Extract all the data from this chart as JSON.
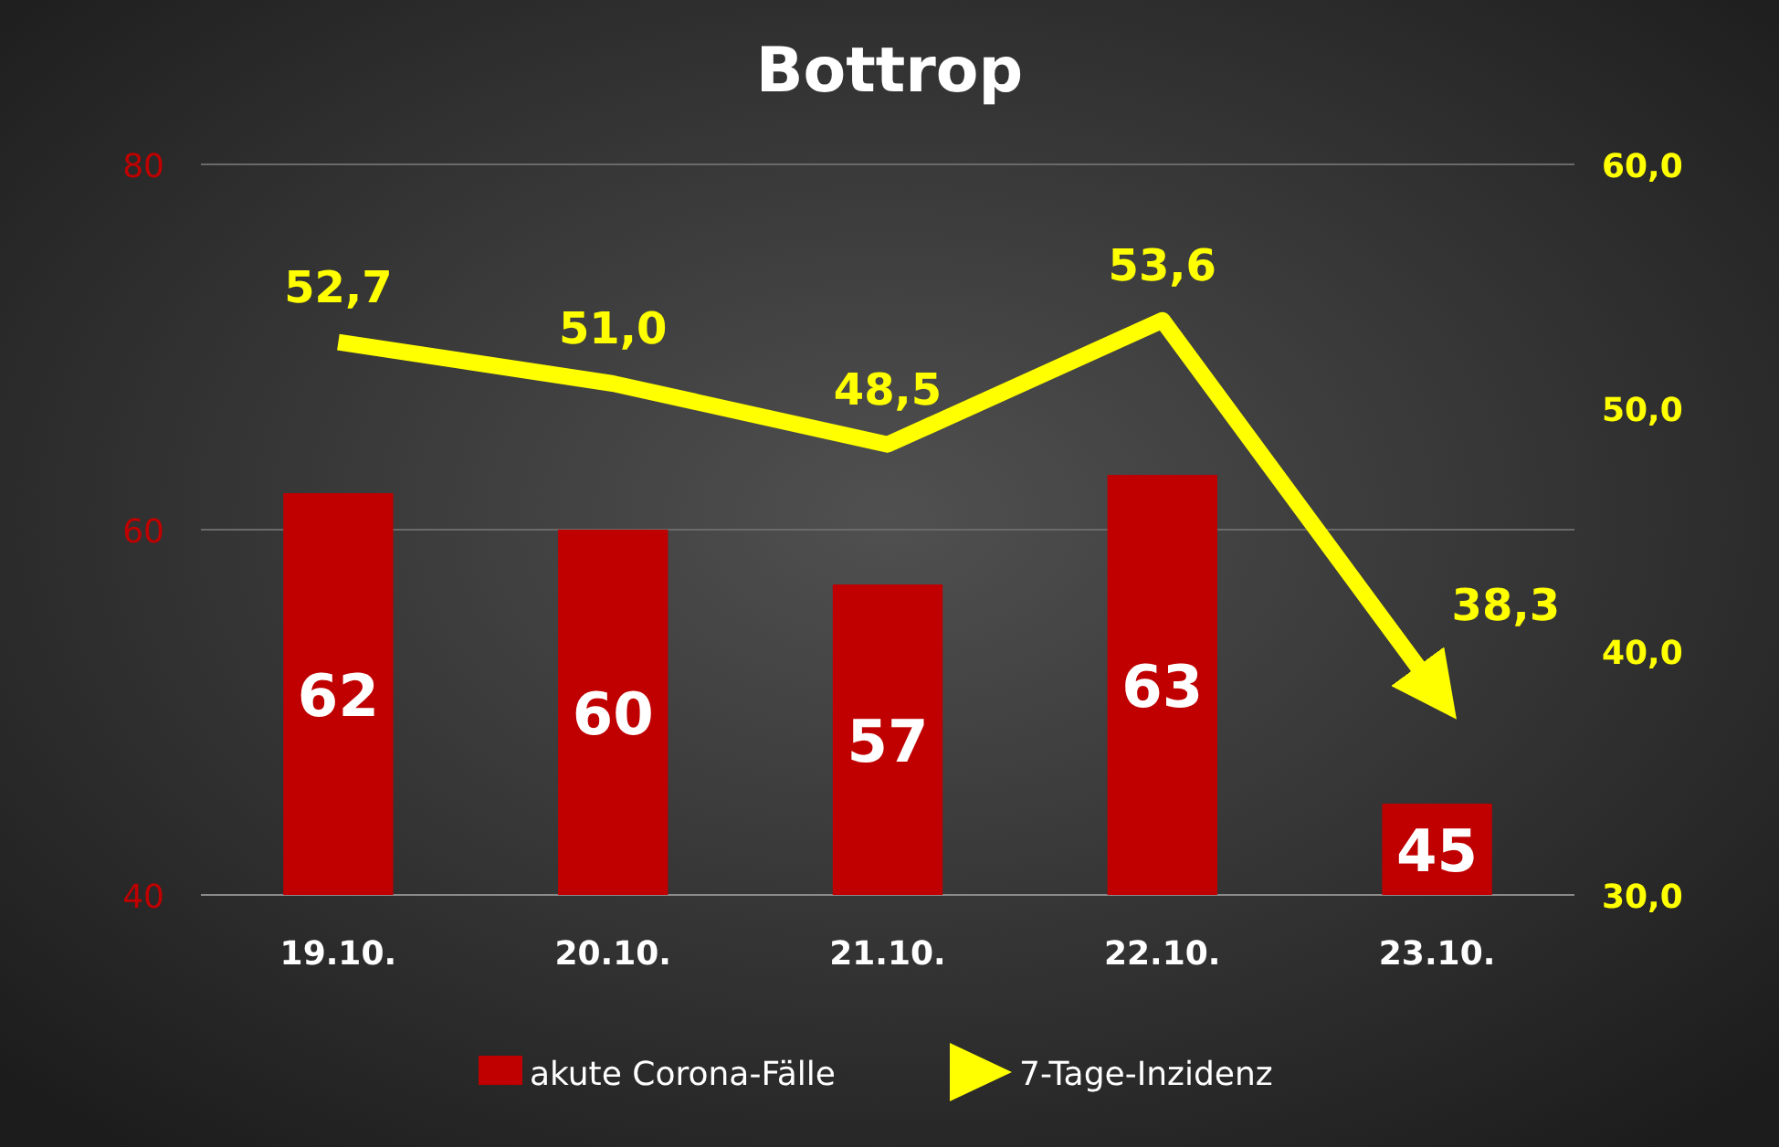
{
  "chart_data": {
    "type": "bar",
    "title": "Bottrop",
    "categories": [
      "19.10.",
      "20.10.",
      "21.10.",
      "22.10.",
      "23.10."
    ],
    "series": [
      {
        "name": "akute Corona-Fälle",
        "color": "#c00000",
        "values": [
          62,
          60,
          57,
          63,
          45
        ],
        "value_labels": [
          "62",
          "60",
          "57",
          "63",
          "45"
        ]
      },
      {
        "name": "7-Tage-Inzidenz",
        "type": "line",
        "axis": "y2",
        "color": "#ffff00",
        "values": [
          52.7,
          51.0,
          48.5,
          53.6,
          38.3
        ],
        "value_labels": [
          "52,7",
          "51,0",
          "48,5",
          "53,6",
          "38,3"
        ]
      }
    ],
    "ylim": [
      40,
      80
    ],
    "yticks": [
      40,
      60,
      80
    ],
    "y2lim": [
      30,
      60
    ],
    "y2ticks": [
      {
        "value": 30,
        "label": "30,0"
      },
      {
        "value": 40,
        "label": "40,0"
      },
      {
        "value": 50,
        "label": "50,0"
      },
      {
        "value": 60,
        "label": "60,0"
      }
    ],
    "grid": "y",
    "legend": "bottom"
  }
}
